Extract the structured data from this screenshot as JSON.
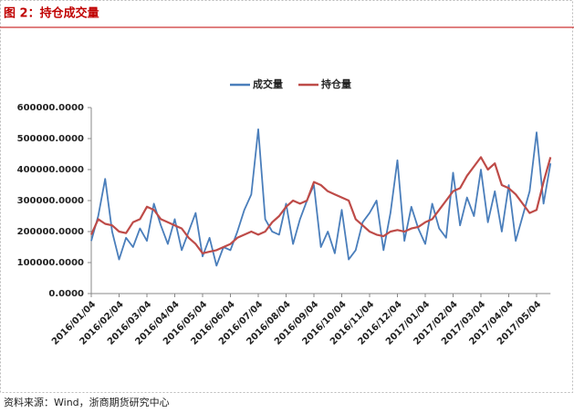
{
  "header": {
    "title": "图 2：持仓成交量"
  },
  "source": "资料来源：Wind，浙商期货研究中心",
  "chart_data": {
    "type": "line",
    "categories": [
      "2016/01/04",
      null,
      null,
      null,
      "2016/02/04",
      null,
      null,
      null,
      "2016/03/04",
      null,
      null,
      null,
      "2016/04/04",
      null,
      null,
      null,
      "2016/05/04",
      null,
      null,
      null,
      "2016/06/04",
      null,
      null,
      null,
      "2016/07/04",
      null,
      null,
      null,
      "2016/08/04",
      null,
      null,
      null,
      "2016/09/04",
      null,
      null,
      null,
      "2016/10/04",
      null,
      null,
      null,
      "2016/11/04",
      null,
      null,
      null,
      "2016/12/04",
      null,
      null,
      null,
      "2017/01/04",
      null,
      null,
      null,
      "2017/02/04",
      null,
      null,
      null,
      "2017/03/04",
      null,
      null,
      null,
      "2017/04/04",
      null,
      null,
      null,
      "2017/05/04",
      null,
      null
    ],
    "series": [
      {
        "name": "成交量",
        "color": "#4a7ebb",
        "values": [
          170000,
          250000,
          370000,
          200000,
          110000,
          180000,
          150000,
          210000,
          170000,
          290000,
          220000,
          160000,
          240000,
          140000,
          200000,
          260000,
          120000,
          180000,
          90000,
          150000,
          140000,
          200000,
          270000,
          320000,
          530000,
          240000,
          200000,
          190000,
          290000,
          160000,
          240000,
          300000,
          350000,
          150000,
          200000,
          130000,
          270000,
          110000,
          140000,
          230000,
          260000,
          300000,
          140000,
          260000,
          430000,
          170000,
          280000,
          210000,
          160000,
          290000,
          210000,
          180000,
          390000,
          220000,
          310000,
          250000,
          400000,
          230000,
          330000,
          200000,
          350000,
          170000,
          250000,
          330000,
          520000,
          290000,
          420000
        ]
      },
      {
        "name": "持仓量",
        "color": "#be4b48",
        "values": [
          190000,
          240000,
          225000,
          220000,
          200000,
          195000,
          230000,
          240000,
          280000,
          270000,
          240000,
          230000,
          220000,
          210000,
          180000,
          160000,
          130000,
          135000,
          140000,
          150000,
          160000,
          180000,
          190000,
          200000,
          190000,
          200000,
          230000,
          250000,
          280000,
          300000,
          290000,
          300000,
          360000,
          350000,
          330000,
          320000,
          310000,
          300000,
          240000,
          220000,
          200000,
          190000,
          185000,
          200000,
          205000,
          200000,
          210000,
          215000,
          230000,
          240000,
          270000,
          300000,
          330000,
          340000,
          380000,
          410000,
          440000,
          400000,
          420000,
          350000,
          340000,
          320000,
          290000,
          260000,
          270000,
          360000,
          440000
        ]
      }
    ],
    "ylim": [
      0,
      600000
    ],
    "yticks": [
      {
        "value": 0,
        "label": "0.0000"
      },
      {
        "value": 100000,
        "label": "100000.0000"
      },
      {
        "value": 200000,
        "label": "200000.0000"
      },
      {
        "value": 300000,
        "label": "300000.0000"
      },
      {
        "value": 400000,
        "label": "400000.0000"
      },
      {
        "value": 500000,
        "label": "500000.0000"
      },
      {
        "value": 600000,
        "label": "600000.0000"
      }
    ],
    "legend": "top"
  }
}
